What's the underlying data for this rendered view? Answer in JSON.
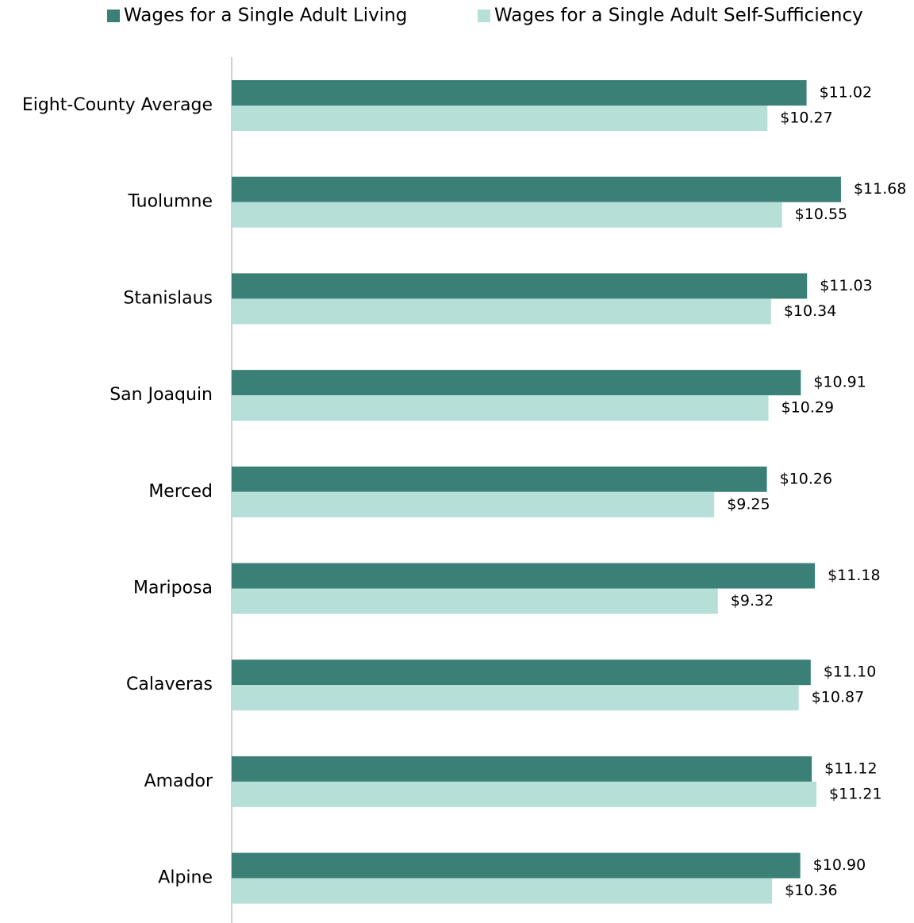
{
  "chart_data": {
    "type": "bar",
    "orientation": "horizontal",
    "categories": [
      "Eight-County Average",
      "Tuolumne",
      "Stanislaus",
      "San Joaquin",
      "Merced",
      "Mariposa",
      "Calaveras",
      "Amador",
      "Alpine"
    ],
    "series": [
      {
        "name": "Wages for a Single Adult Living",
        "color": "#3a8077",
        "values": [
          11.02,
          11.68,
          11.03,
          10.91,
          10.26,
          11.18,
          11.1,
          11.12,
          10.9
        ],
        "value_labels": [
          "$11.02",
          "$11.68",
          "$11.03",
          "$10.91",
          "$10.26",
          "$11.18",
          "$11.10",
          "$11.12",
          "$10.90"
        ]
      },
      {
        "name": "Wages for a Single Adult Self-Sufficiency",
        "color": "#b5dfd7",
        "values": [
          10.27,
          10.55,
          10.34,
          10.29,
          9.25,
          9.32,
          10.87,
          11.21,
          10.36
        ],
        "value_labels": [
          "$10.27",
          "$10.55",
          "$10.34",
          "$10.29",
          "$9.25",
          "$9.32",
          "$10.87",
          "$11.21",
          "$10.36"
        ]
      }
    ],
    "legend": "top"
  }
}
